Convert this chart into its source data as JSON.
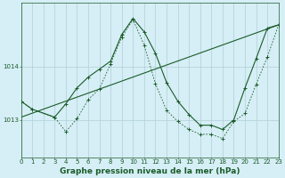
{
  "title": "Graphe pression niveau de la mer (hPa)",
  "bg_color": "#d6eef5",
  "grid_color": "#b0cfd8",
  "line_color": "#1a5c2a",
  "xlim": [
    0,
    23
  ],
  "ylim": [
    1012.3,
    1015.2
  ],
  "yticks": [
    1013,
    1014
  ],
  "xticks": [
    0,
    1,
    2,
    3,
    4,
    5,
    6,
    7,
    8,
    9,
    10,
    11,
    12,
    13,
    14,
    15,
    16,
    17,
    18,
    19,
    20,
    21,
    22,
    23
  ],
  "series1_x": [
    0,
    1,
    3,
    4,
    5,
    6,
    7,
    8,
    9,
    10,
    11,
    12,
    13,
    14,
    15,
    16,
    17,
    18,
    19,
    20,
    21,
    22,
    23
  ],
  "series1_y": [
    1013.35,
    1013.2,
    1013.05,
    1013.3,
    1013.6,
    1013.8,
    1013.95,
    1014.1,
    1014.6,
    1014.9,
    1014.65,
    1014.25,
    1013.7,
    1013.35,
    1013.1,
    1012.9,
    1012.9,
    1012.82,
    1013.0,
    1013.6,
    1014.15,
    1014.72,
    1014.78
  ],
  "series2_x": [
    0,
    1,
    3,
    4,
    5,
    6,
    7,
    8,
    9,
    10,
    11,
    12,
    13,
    14,
    15,
    16,
    17,
    18,
    19,
    20,
    21,
    22,
    23
  ],
  "series2_y": [
    1013.35,
    1013.2,
    1013.05,
    1012.78,
    1013.02,
    1013.38,
    1013.58,
    1014.05,
    1014.55,
    1014.88,
    1014.4,
    1013.68,
    1013.18,
    1012.97,
    1012.82,
    1012.73,
    1012.73,
    1012.65,
    1012.97,
    1013.12,
    1013.67,
    1014.18,
    1014.78
  ],
  "series3_x": [
    0,
    23
  ],
  "series3_y": [
    1013.05,
    1014.78
  ],
  "marker_size": 2.5,
  "tick_fontsize": 5.0,
  "label_fontsize": 6.5
}
